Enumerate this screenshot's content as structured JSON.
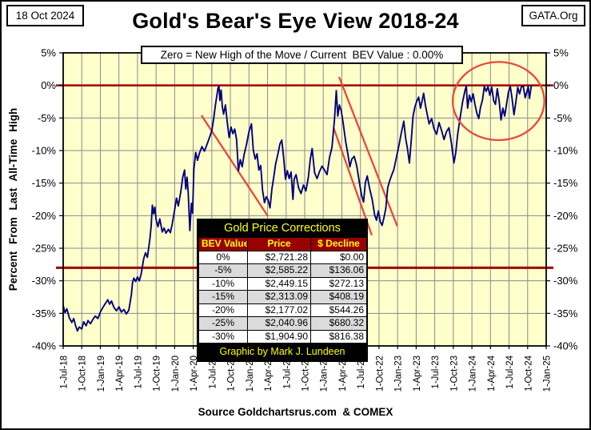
{
  "header": {
    "date": "18 Oct 2024",
    "org": "GATA.Org",
    "title": "Gold's Bear's Eye View 2018-24",
    "subtitle": "Zero = New High of the Move / Current  BEV Value : 0.00%"
  },
  "footer": {
    "source": "Source Goldchartsrus.com  & COMEX"
  },
  "table": {
    "title": "Gold Price Corrections",
    "columns": [
      "BEV Value",
      "Price",
      "$ Decline"
    ],
    "rows": [
      [
        "0%",
        "$2,721.28",
        "$0.00"
      ],
      [
        "-5%",
        "$2,585.22",
        "$136.06"
      ],
      [
        "-10%",
        "$2,449.15",
        "$272.13"
      ],
      [
        "-15%",
        "$2,313.09",
        "$408.19"
      ],
      [
        "-20%",
        "$2,177.02",
        "$544.26"
      ],
      [
        "-25%",
        "$2,040.96",
        "$680.32"
      ],
      [
        "-30%",
        "$1,904.90",
        "$816.38"
      ]
    ],
    "footer": "Graphic by Mark J. Lundeen"
  },
  "chart_data": {
    "type": "line",
    "title": "Gold's Bear's Eye View 2018-24",
    "xlabel": "",
    "ylabel": "Percent From Last All-Time High",
    "ylim": [
      -40,
      5
    ],
    "grid": true,
    "x_unit": "months since 1-Jul-2018",
    "x_total_months": 78,
    "x_ticks": [
      "1-Jul-18",
      "1-Oct-18",
      "1-Jan-19",
      "1-Apr-19",
      "1-Jul-19",
      "1-Oct-19",
      "1-Jan-20",
      "1-Apr-20",
      "1-Jul-20",
      "1-Oct-20",
      "1-Jan-21",
      "1-Apr-21",
      "1-Jul-21",
      "1-Oct-21",
      "1-Jan-22",
      "1-Apr-22",
      "1-Jul-22",
      "1-Oct-22",
      "1-Jan-23",
      "1-Apr-23",
      "1-Jul-23",
      "1-Oct-23",
      "1-Jan-24",
      "1-Apr-24",
      "1-Jul-24",
      "1-Oct-24",
      "1-Jan-25"
    ],
    "y_tick_values": [
      5,
      0,
      -5,
      -10,
      -15,
      -20,
      -25,
      -30,
      -35,
      -40
    ],
    "y_ticks": [
      "5%",
      "0%",
      "-5%",
      "-10%",
      "-15%",
      "-20%",
      "-25%",
      "-30%",
      "-35%",
      "-40%"
    ],
    "current_bev_value": "0.00%",
    "colors": {
      "plot_bg": "#FFFFCC",
      "grid": "#8A8A8A",
      "line": "#00007E",
      "reference": "#A00000",
      "annotation": "#E8483C"
    },
    "reference_lines": [
      {
        "label": "zero-new-high-line",
        "value": 0,
        "color": "#A00000",
        "width": 2.5
      },
      {
        "label": "minus-28pct-support-line",
        "value": -28,
        "color": "#A00000",
        "width": 3
      }
    ],
    "annotations": {
      "trend_lines": [
        {
          "label": "2020-21-downtrend",
          "from": [
            22.4,
            -4.7
          ],
          "to": [
            33.0,
            -20.0
          ]
        },
        {
          "label": "2022-channel-upper",
          "from": [
            44.6,
            1.2
          ],
          "to": [
            53.9,
            -21.5
          ]
        },
        {
          "label": "2022-channel-lower",
          "from": [
            43.7,
            -6.6
          ],
          "to": [
            49.8,
            -22.9
          ]
        }
      ],
      "ellipse": {
        "label": "2024-new-highs-circle",
        "t": 70.3,
        "v": -2.4,
        "rt": 7.4,
        "rv": 6.0
      }
    },
    "series": [
      {
        "name": "Gold BEV % from last all-time high",
        "color": "#00007E",
        "points": [
          [
            0,
            -33.8
          ],
          [
            0.3,
            -34.9
          ],
          [
            0.6,
            -34.3
          ],
          [
            1,
            -35.7
          ],
          [
            1.4,
            -36.4
          ],
          [
            1.7,
            -35.8
          ],
          [
            2,
            -36.9
          ],
          [
            2.3,
            -37.7
          ],
          [
            2.6,
            -37.1
          ],
          [
            3,
            -37.4
          ],
          [
            3.3,
            -36.3
          ],
          [
            3.7,
            -36.9
          ],
          [
            4,
            -36.1
          ],
          [
            4.4,
            -36.6
          ],
          [
            4.8,
            -35.9
          ],
          [
            5.2,
            -35.4
          ],
          [
            5.6,
            -35.8
          ],
          [
            6,
            -34.8
          ],
          [
            6.4,
            -34.1
          ],
          [
            6.8,
            -33.5
          ],
          [
            7.2,
            -32.9
          ],
          [
            7.5,
            -33.6
          ],
          [
            7.8,
            -33.1
          ],
          [
            8.2,
            -34.1
          ],
          [
            8.6,
            -34.6
          ],
          [
            9,
            -34.0
          ],
          [
            9.4,
            -34.8
          ],
          [
            9.8,
            -34.4
          ],
          [
            10.2,
            -35.1
          ],
          [
            10.6,
            -34.5
          ],
          [
            11,
            -32.2
          ],
          [
            11.2,
            -30.3
          ],
          [
            11.4,
            -29.6
          ],
          [
            11.7,
            -30.1
          ],
          [
            12,
            -29.4
          ],
          [
            12.3,
            -30.0
          ],
          [
            12.6,
            -28.9
          ],
          [
            13,
            -26.6
          ],
          [
            13.3,
            -25.7
          ],
          [
            13.6,
            -26.4
          ],
          [
            14,
            -23.6
          ],
          [
            14.2,
            -21.6
          ],
          [
            14.4,
            -18.4
          ],
          [
            14.6,
            -19.7
          ],
          [
            14.8,
            -18.7
          ],
          [
            15,
            -20.6
          ],
          [
            15.3,
            -21.7
          ],
          [
            15.6,
            -20.5
          ],
          [
            16,
            -22.5
          ],
          [
            16.3,
            -21.9
          ],
          [
            16.6,
            -22.7
          ],
          [
            17,
            -22.1
          ],
          [
            17.3,
            -22.6
          ],
          [
            17.6,
            -21.3
          ],
          [
            18,
            -19.1
          ],
          [
            18.3,
            -17.3
          ],
          [
            18.6,
            -18.5
          ],
          [
            19,
            -16.3
          ],
          [
            19.3,
            -14.1
          ],
          [
            19.6,
            -13.0
          ],
          [
            19.8,
            -15.9
          ],
          [
            20,
            -14.1
          ],
          [
            20.2,
            -16.6
          ],
          [
            20.45,
            -22.3
          ],
          [
            20.7,
            -18.1
          ],
          [
            20.9,
            -19.6
          ],
          [
            21.1,
            -12.9
          ],
          [
            21.4,
            -10.3
          ],
          [
            21.7,
            -11.5
          ],
          [
            22,
            -10.4
          ],
          [
            22.4,
            -9.4
          ],
          [
            22.8,
            -10.1
          ],
          [
            23.2,
            -9.1
          ],
          [
            23.6,
            -8.1
          ],
          [
            24,
            -7.0
          ],
          [
            24.3,
            -5.1
          ],
          [
            24.6,
            -2.9
          ],
          [
            25,
            -0.4
          ],
          [
            25.15,
            -0.1
          ],
          [
            25.3,
            -2.3
          ],
          [
            25.5,
            -0.7
          ],
          [
            25.7,
            -3.3
          ],
          [
            25.9,
            -4.4
          ],
          [
            26.2,
            -3.0
          ],
          [
            26.5,
            -5.7
          ],
          [
            26.8,
            -8.0
          ],
          [
            27.1,
            -6.4
          ],
          [
            27.4,
            -7.4
          ],
          [
            27.7,
            -6.7
          ],
          [
            28,
            -8.3
          ],
          [
            28.3,
            -13.1
          ],
          [
            28.6,
            -11.4
          ],
          [
            28.9,
            -12.5
          ],
          [
            29.2,
            -10.7
          ],
          [
            29.6,
            -9.1
          ],
          [
            30,
            -7.1
          ],
          [
            30.4,
            -5.9
          ],
          [
            30.7,
            -9.9
          ],
          [
            31,
            -11.3
          ],
          [
            31.3,
            -10.5
          ],
          [
            31.6,
            -13.0
          ],
          [
            31.9,
            -12.3
          ],
          [
            32.2,
            -16.1
          ],
          [
            32.5,
            -18.0
          ],
          [
            32.8,
            -17.1
          ],
          [
            33.1,
            -17.6
          ],
          [
            33.4,
            -18.8
          ],
          [
            33.7,
            -15.9
          ],
          [
            34,
            -14.1
          ],
          [
            34.3,
            -12.1
          ],
          [
            34.7,
            -10.4
          ],
          [
            35,
            -9.0
          ],
          [
            35.3,
            -8.4
          ],
          [
            35.6,
            -11.1
          ],
          [
            35.9,
            -14.4
          ],
          [
            36.2,
            -13.1
          ],
          [
            36.5,
            -14.3
          ],
          [
            36.8,
            -13.3
          ],
          [
            37.1,
            -17.5
          ],
          [
            37.3,
            -14.4
          ],
          [
            37.6,
            -13.7
          ],
          [
            38,
            -15.7
          ],
          [
            38.4,
            -16.6
          ],
          [
            38.8,
            -15.3
          ],
          [
            39.2,
            -16.2
          ],
          [
            39.6,
            -14.1
          ],
          [
            39.9,
            -11.3
          ],
          [
            40.2,
            -9.7
          ],
          [
            40.6,
            -13.4
          ],
          [
            41,
            -14.3
          ],
          [
            41.4,
            -13.2
          ],
          [
            41.8,
            -12.4
          ],
          [
            42.2,
            -13.0
          ],
          [
            42.6,
            -13.7
          ],
          [
            43,
            -11.1
          ],
          [
            43.4,
            -9.5
          ],
          [
            43.8,
            -5.3
          ],
          [
            44.1,
            -0.8
          ],
          [
            44.35,
            -4.7
          ],
          [
            44.6,
            -3.0
          ],
          [
            44.9,
            -3.9
          ],
          [
            45.2,
            -5.7
          ],
          [
            45.6,
            -8.5
          ],
          [
            46,
            -10.7
          ],
          [
            46.3,
            -12.5
          ],
          [
            46.6,
            -11.3
          ],
          [
            47,
            -10.9
          ],
          [
            47.4,
            -12.3
          ],
          [
            47.8,
            -14.7
          ],
          [
            48.2,
            -16.9
          ],
          [
            48.5,
            -17.9
          ],
          [
            48.8,
            -14.9
          ],
          [
            49.1,
            -13.9
          ],
          [
            49.5,
            -15.9
          ],
          [
            49.9,
            -17.5
          ],
          [
            50.3,
            -19.9
          ],
          [
            50.6,
            -20.7
          ],
          [
            50.9,
            -19.3
          ],
          [
            51.2,
            -20.9
          ],
          [
            51.5,
            -21.5
          ],
          [
            51.8,
            -20.3
          ],
          [
            52.1,
            -18.9
          ],
          [
            52.4,
            -15.7
          ],
          [
            52.7,
            -14.7
          ],
          [
            53,
            -13.9
          ],
          [
            53.4,
            -12.9
          ],
          [
            53.8,
            -11.1
          ],
          [
            54.2,
            -9.3
          ],
          [
            54.6,
            -7.3
          ],
          [
            55,
            -5.5
          ],
          [
            55.3,
            -8.1
          ],
          [
            55.6,
            -9.7
          ],
          [
            55.9,
            -11.9
          ],
          [
            56.2,
            -8.5
          ],
          [
            56.5,
            -4.7
          ],
          [
            56.8,
            -3.3
          ],
          [
            57.1,
            -2.4
          ],
          [
            57.4,
            -1.8
          ],
          [
            57.7,
            -3.5
          ],
          [
            58,
            -2.2
          ],
          [
            58.2,
            -1.2
          ],
          [
            58.5,
            -3.1
          ],
          [
            58.8,
            -4.5
          ],
          [
            59.1,
            -5.9
          ],
          [
            59.5,
            -5.1
          ],
          [
            59.9,
            -6.7
          ],
          [
            60.3,
            -7.5
          ],
          [
            60.7,
            -5.7
          ],
          [
            61.1,
            -6.9
          ],
          [
            61.5,
            -8.3
          ],
          [
            61.9,
            -7.1
          ],
          [
            62.3,
            -6.5
          ],
          [
            62.7,
            -8.9
          ],
          [
            63.1,
            -11.9
          ],
          [
            63.4,
            -10.3
          ],
          [
            63.7,
            -7.5
          ],
          [
            64.1,
            -4.9
          ],
          [
            64.5,
            -2.5
          ],
          [
            64.9,
            -0.7
          ],
          [
            65.1,
            -0.1
          ],
          [
            65.3,
            -3.5
          ],
          [
            65.6,
            -1.5
          ],
          [
            65.9,
            -2.5
          ],
          [
            66.2,
            -1.3
          ],
          [
            66.5,
            -2.9
          ],
          [
            66.8,
            -4.3
          ],
          [
            67.1,
            -5.1
          ],
          [
            67.4,
            -3.3
          ],
          [
            67.7,
            -2.3
          ],
          [
            68,
            -0.2
          ],
          [
            68.3,
            -0.9
          ],
          [
            68.6,
            -0.2
          ],
          [
            68.9,
            -1.5
          ],
          [
            69.2,
            -0.3
          ],
          [
            69.5,
            -2.3
          ],
          [
            69.8,
            -2.9
          ],
          [
            70.1,
            -0.5
          ],
          [
            70.4,
            -2.3
          ],
          [
            70.7,
            -5.3
          ],
          [
            71,
            -3.5
          ],
          [
            71.3,
            -4.7
          ],
          [
            71.6,
            -2.9
          ],
          [
            71.9,
            -1.0
          ],
          [
            72.2,
            -0.2
          ],
          [
            72.5,
            -2.1
          ],
          [
            72.8,
            -4.5
          ],
          [
            73.1,
            -2.5
          ],
          [
            73.4,
            -0.3
          ],
          [
            73.7,
            -1.3
          ],
          [
            74,
            -0.2
          ],
          [
            74.3,
            -0.1
          ],
          [
            74.6,
            -1.9
          ],
          [
            74.9,
            -0.9
          ],
          [
            75.1,
            -0.2
          ],
          [
            75.3,
            -2.0
          ],
          [
            75.6,
            0.0
          ]
        ]
      }
    ],
    "legend": []
  }
}
